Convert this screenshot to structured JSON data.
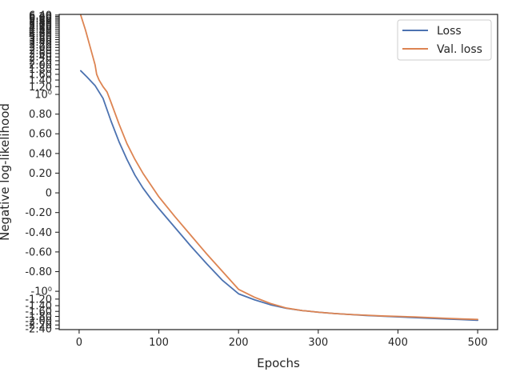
{
  "chart_data": {
    "type": "line",
    "title": "",
    "xlabel": "Epochs",
    "ylabel": "Negative log-likelihood",
    "xlim": [
      -25,
      525
    ],
    "xticks": [
      0,
      100,
      200,
      300,
      400,
      500
    ],
    "xtick_labels": [
      "0",
      "100",
      "200",
      "300",
      "400",
      "500"
    ],
    "y_scale": "symlog",
    "ylim": [
      -2.45,
      6.5
    ],
    "ytick_labels": [
      "-2.40",
      "-2.20",
      "-2.00",
      "-1.80",
      "-1.60",
      "-1.40",
      "-1.20",
      "-10⁰",
      "-0.80",
      "-0.60",
      "-0.40",
      "-0.20",
      "0",
      "0.20",
      "0.40",
      "0.60",
      "0.80",
      "10⁰",
      "1.20",
      "1.40",
      "1.60",
      "1.80",
      "2.00",
      "2.20",
      "2.40",
      "2.60",
      "2.80",
      "3.00",
      "3.20",
      "3.40",
      "3.60",
      "3.80",
      "4.00",
      "4.20",
      "4.40",
      "4.60",
      "4.80",
      "5.00",
      "5.20",
      "5.40",
      "5.60",
      "5.80",
      "6.00",
      "6.20",
      "6.40"
    ],
    "legend": {
      "position": "top-right",
      "entries": [
        "Loss",
        "Val. loss"
      ]
    },
    "grid": false,
    "series": [
      {
        "name": "Loss",
        "color": "#4c72b0",
        "x": [
          2,
          10,
          20,
          30,
          40,
          50,
          60,
          70,
          80,
          90,
          100,
          120,
          140,
          160,
          180,
          200,
          220,
          240,
          260,
          280,
          300,
          320,
          340,
          360,
          380,
          400,
          420,
          440,
          460,
          480,
          500
        ],
        "y": [
          1.74,
          1.5,
          1.23,
          0.96,
          0.73,
          0.52,
          0.34,
          0.18,
          0.05,
          -0.06,
          -0.16,
          -0.35,
          -0.54,
          -0.72,
          -0.89,
          -1.06,
          -1.22,
          -1.37,
          -1.49,
          -1.57,
          -1.63,
          -1.68,
          -1.72,
          -1.76,
          -1.79,
          -1.82,
          -1.85,
          -1.88,
          -1.91,
          -1.94,
          -1.97
        ]
      },
      {
        "name": "Val. loss",
        "color": "#dd8452",
        "x": [
          2,
          8,
          14,
          20,
          22,
          25,
          30,
          35,
          40,
          50,
          60,
          70,
          80,
          90,
          100,
          120,
          140,
          160,
          180,
          200,
          220,
          240,
          260,
          280,
          300,
          320,
          340,
          360,
          380,
          400,
          420,
          440,
          460,
          480,
          500
        ],
        "y": [
          6.4,
          4.5,
          3.0,
          2.0,
          1.6,
          1.4,
          1.2,
          1.06,
          0.92,
          0.7,
          0.5,
          0.34,
          0.2,
          0.08,
          -0.04,
          -0.24,
          -0.43,
          -0.62,
          -0.8,
          -0.98,
          -1.15,
          -1.33,
          -1.48,
          -1.57,
          -1.63,
          -1.68,
          -1.72,
          -1.75,
          -1.78,
          -1.8,
          -1.82,
          -1.85,
          -1.88,
          -1.91,
          -1.93
        ]
      }
    ]
  }
}
